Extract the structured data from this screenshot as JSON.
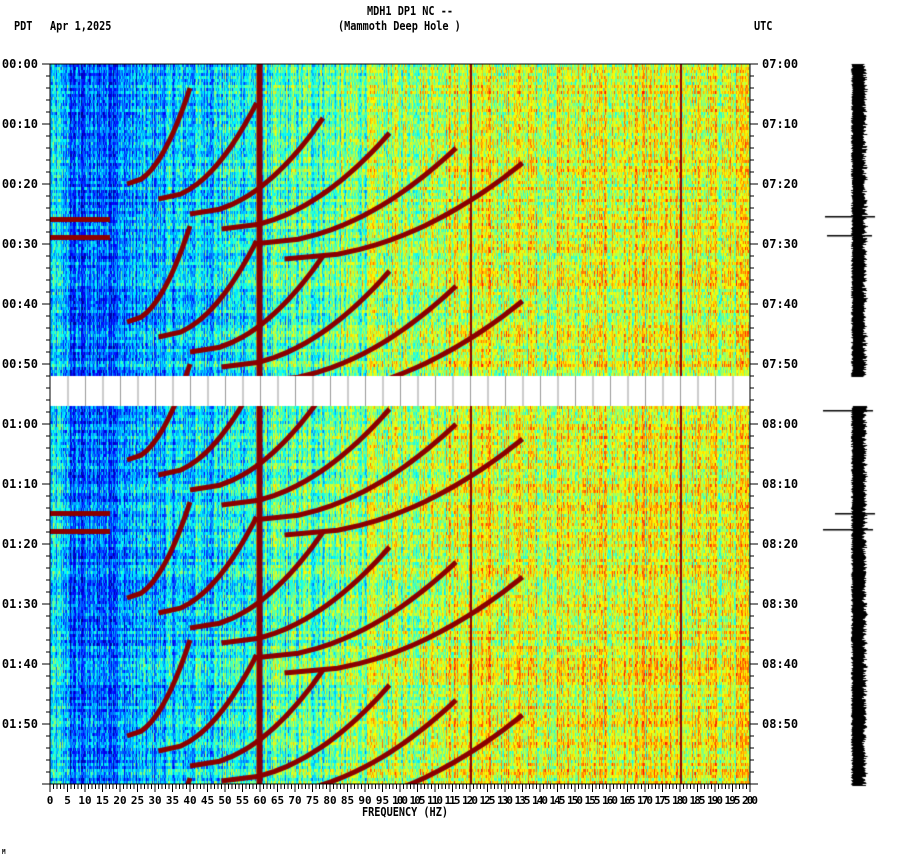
{
  "header": {
    "title_line1": "MDH1 DP1 NC --",
    "title_line2": "(Mammoth Deep Hole )",
    "left_tz": "PDT",
    "date": "Apr 1,2025",
    "right_tz": "UTC"
  },
  "footer_mark": "M",
  "chart_data": {
    "type": "heatmap",
    "title": "MDH1 DP1 NC -- (Mammoth Deep Hole )",
    "xlabel": "FREQUENCY (HZ)",
    "xlim": [
      0,
      200
    ],
    "x_ticks": [
      "0",
      "5",
      "10",
      "15",
      "20",
      "25",
      "30",
      "35",
      "40",
      "45",
      "50",
      "55",
      "60",
      "65",
      "70",
      "75",
      "80",
      "85",
      "90",
      "95",
      "100",
      "105",
      "110",
      "115",
      "120",
      "125",
      "130",
      "135",
      "140",
      "145",
      "150",
      "155",
      "160",
      "165",
      "170",
      "175",
      "180",
      "185",
      "190",
      "195",
      "200"
    ],
    "ylim_minutes": [
      0,
      120
    ],
    "y_ticks_left": [
      "00:00",
      "00:10",
      "00:20",
      "00:30",
      "00:40",
      "00:50",
      "01:00",
      "01:10",
      "01:20",
      "01:30",
      "01:40",
      "01:50"
    ],
    "y_ticks_right": [
      "07:00",
      "07:10",
      "07:20",
      "07:30",
      "07:40",
      "07:50",
      "08:00",
      "08:10",
      "08:20",
      "08:30",
      "08:40",
      "08:50"
    ],
    "data_gap_minutes": [
      52,
      57
    ],
    "persistent_lines_hz": [
      60,
      120,
      180
    ],
    "colormap": "jet",
    "colors": {
      "low": "#0000ff",
      "mid": "#00ffff",
      "high": "#ffff00",
      "peak": "#800000"
    }
  }
}
